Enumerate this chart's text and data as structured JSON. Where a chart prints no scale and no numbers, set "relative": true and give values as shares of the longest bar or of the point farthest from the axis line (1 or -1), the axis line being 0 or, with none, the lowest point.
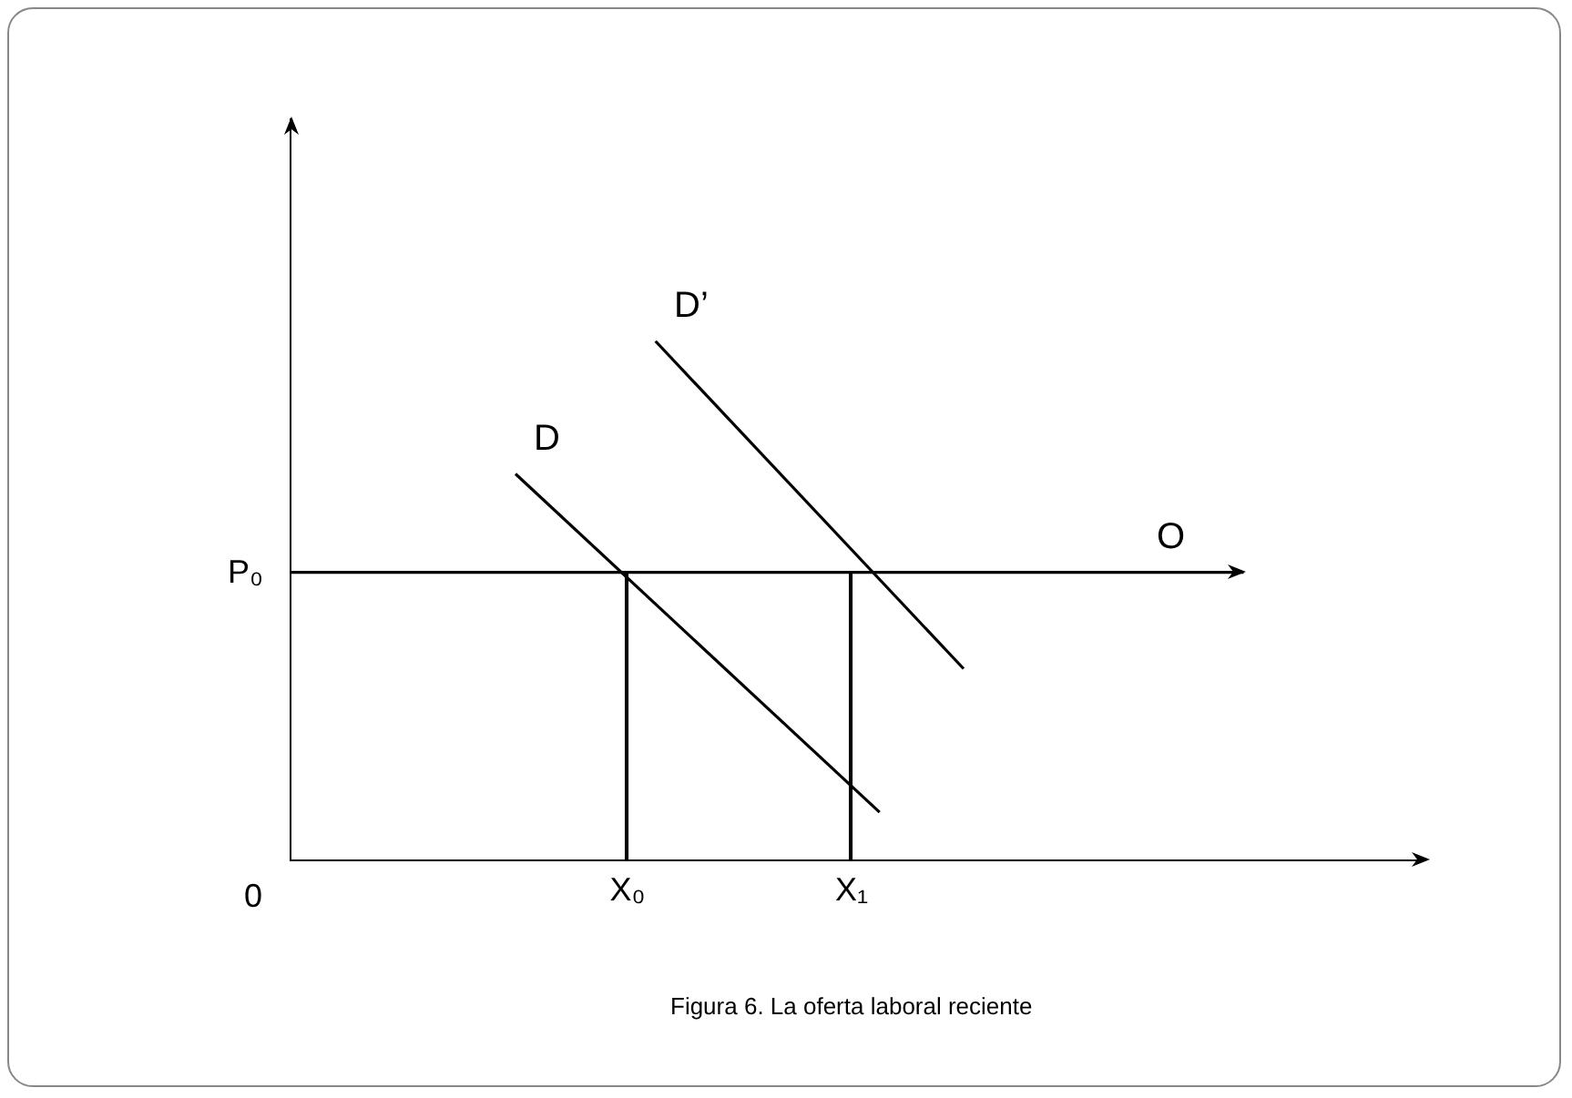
{
  "chart_data": {
    "type": "line",
    "relative": true,
    "legend": false,
    "grid": false,
    "line_style": "solid",
    "categories": [
      null,
      null,
      null,
      null,
      null,
      null,
      null,
      null,
      null,
      null,
      null,
      null,
      "X₀",
      null,
      null,
      null,
      null,
      null,
      null,
      null,
      "X₁",
      null,
      null,
      null,
      null,
      null,
      null,
      null,
      null,
      null,
      null,
      null,
      null,
      null,
      null,
      null,
      null,
      null,
      null,
      null,
      null
    ],
    "series": [
      {
        "name": "D",
        "color": "#000000",
        "values": [
          null,
          null,
          null,
          null,
          null,
          null,
          null,
          null,
          0.744,
          null,
          null,
          null,
          null,
          null,
          null,
          null,
          null,
          null,
          null,
          null,
          null,
          0.091,
          null,
          null,
          null,
          null,
          null,
          null,
          null,
          null,
          null,
          null,
          null,
          null,
          null,
          null,
          null,
          null,
          null,
          null,
          null
        ]
      },
      {
        "name": "D’",
        "color": "#000000",
        "values": [
          null,
          null,
          null,
          null,
          null,
          null,
          null,
          null,
          null,
          null,
          null,
          null,
          null,
          1,
          null,
          null,
          null,
          null,
          null,
          null,
          null,
          null,
          null,
          null,
          0.368,
          null,
          null,
          null,
          null,
          null,
          null,
          null,
          null,
          null,
          null,
          null,
          null,
          null,
          null,
          null,
          null
        ]
      },
      {
        "name": "O",
        "color": "#000000",
        "values": [
          0.554,
          null,
          null,
          null,
          null,
          null,
          null,
          null,
          null,
          null,
          null,
          null,
          null,
          null,
          null,
          null,
          null,
          null,
          null,
          null,
          null,
          null,
          null,
          null,
          null,
          null,
          null,
          null,
          null,
          null,
          null,
          null,
          null,
          null,
          0.554,
          null,
          null,
          null,
          null,
          null,
          null
        ]
      },
      {
        "type": "bar",
        "color": "#000000",
        "values": [
          null,
          null,
          null,
          null,
          null,
          null,
          null,
          null,
          null,
          null,
          null,
          null,
          0.554,
          null,
          null,
          null,
          null,
          null,
          null,
          null,
          0.554,
          null,
          null,
          null,
          null,
          null,
          null,
          null,
          null,
          null,
          null,
          null,
          null,
          null,
          null,
          null,
          null,
          null,
          null,
          null,
          null
        ]
      }
    ],
    "annotations": [
      "Figura 6. La oferta laboral reciente",
      "0",
      "P₀"
    ]
  }
}
